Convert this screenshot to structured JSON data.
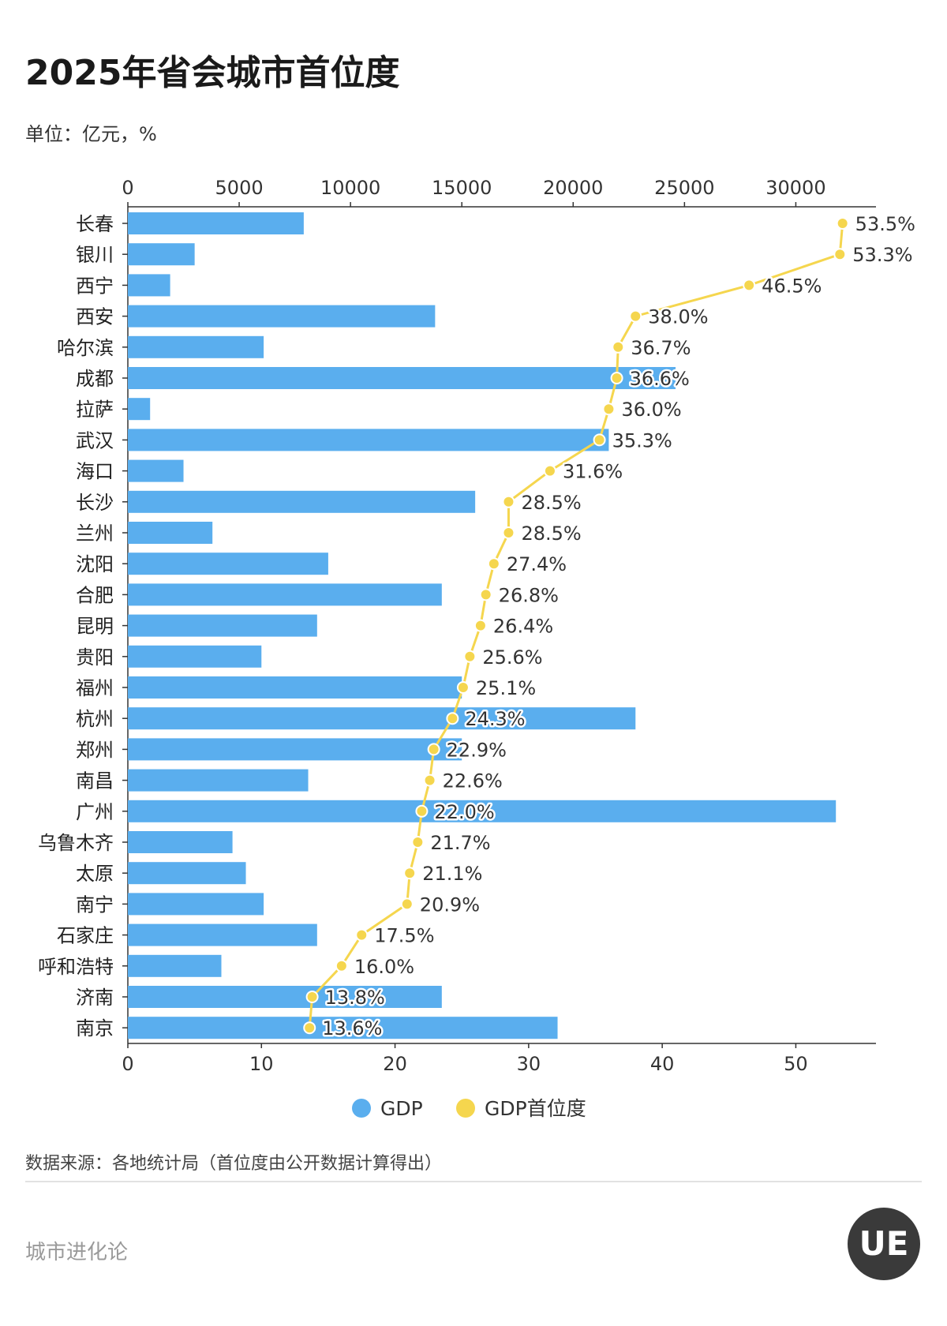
{
  "title": "2025年省会城市首位度",
  "unit": "单位：亿元，%",
  "source": "数据来源：各地统计局（首位度由公开数据计算得出）",
  "brand": "城市进化论",
  "logo_text": "UE",
  "colors": {
    "bar": "#5aaeee",
    "line": "#f5d64e",
    "axis": "#333333"
  },
  "chart_data": {
    "type": "bar",
    "orientation": "horizontal",
    "categories": [
      "长春",
      "银川",
      "西宁",
      "西安",
      "哈尔滨",
      "成都",
      "拉萨",
      "武汉",
      "海口",
      "长沙",
      "兰州",
      "沈阳",
      "合肥",
      "昆明",
      "贵阳",
      "福州",
      "杭州",
      "郑州",
      "南昌",
      "广州",
      "乌鲁木齐",
      "太原",
      "南宁",
      "石家庄",
      "呼和浩特",
      "济南",
      "南京"
    ],
    "series": [
      {
        "name": "GDP",
        "axis": "top",
        "values": [
          7900,
          3000,
          1900,
          13800,
          6100,
          24600,
          1000,
          21600,
          2500,
          15600,
          3800,
          9000,
          14100,
          8500,
          6000,
          15000,
          22800,
          15000,
          8100,
          31800,
          4700,
          5300,
          6100,
          8500,
          4200,
          14100,
          19300
        ]
      },
      {
        "name": "GDP首位度",
        "axis": "bottom",
        "type": "line",
        "values": [
          53.5,
          53.3,
          46.5,
          38.0,
          36.7,
          36.6,
          36.0,
          35.3,
          31.6,
          28.5,
          28.5,
          27.4,
          26.8,
          26.4,
          25.6,
          25.1,
          24.3,
          22.9,
          22.6,
          22.0,
          21.7,
          21.1,
          20.9,
          17.5,
          16.0,
          13.8,
          13.6
        ],
        "labels": [
          "53.5%",
          "53.3%",
          "46.5%",
          "38.0%",
          "36.7%",
          "36.6%",
          "36.0%",
          "35.3%",
          "31.6%",
          "28.5%",
          "28.5%",
          "27.4%",
          "26.8%",
          "26.4%",
          "25.6%",
          "25.1%",
          "24.3%",
          "22.9%",
          "22.6%",
          "22.0%",
          "21.7%",
          "21.1%",
          "20.9%",
          "17.5%",
          "16.0%",
          "13.8%",
          "13.6%"
        ]
      }
    ],
    "top_axis": {
      "ticks": [
        "0",
        "5000",
        "10000",
        "15000",
        "20000",
        "25000",
        "30000"
      ],
      "tick_values": [
        0,
        5000,
        10000,
        15000,
        20000,
        25000,
        30000
      ],
      "range": [
        0,
        33600
      ]
    },
    "bottom_axis": {
      "ticks": [
        "0",
        "10",
        "20",
        "30",
        "40",
        "50"
      ],
      "tick_values": [
        0,
        10,
        20,
        30,
        40,
        50
      ],
      "range": [
        0,
        56
      ]
    },
    "legend": {
      "position": "bottom",
      "entries": [
        "GDP",
        "GDP首位度"
      ]
    },
    "grid": false
  }
}
